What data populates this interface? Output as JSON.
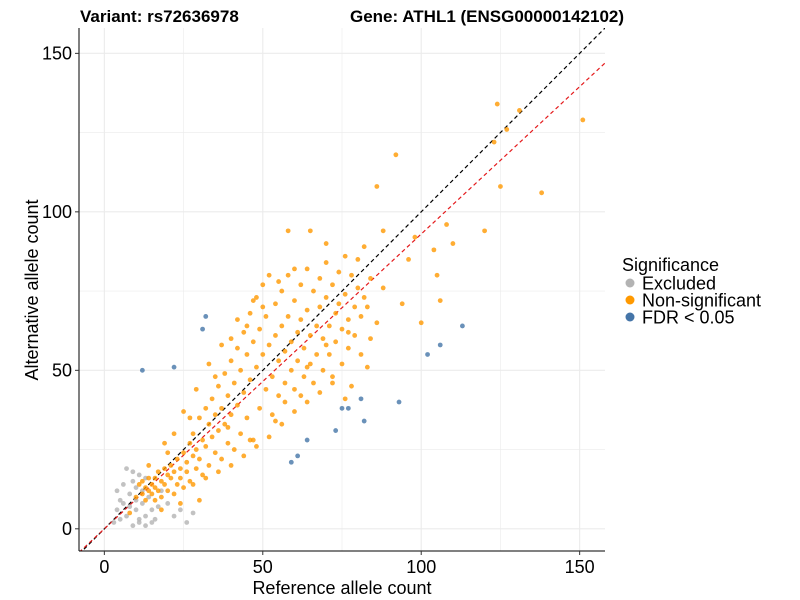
{
  "titles": {
    "variant": "Variant: rs72636978",
    "gene": "Gene: ATHL1 (ENSG00000142102)"
  },
  "chart_data": {
    "type": "scatter",
    "xlabel": "Reference allele count",
    "ylabel": "Alternative allele count",
    "xlim": [
      -8,
      158
    ],
    "ylim": [
      -7,
      158
    ],
    "x_ticks": [
      0,
      50,
      100,
      150
    ],
    "y_ticks": [
      0,
      50,
      100,
      150
    ],
    "grid": true,
    "legend": {
      "title": "Significance",
      "placement": "right",
      "entries": [
        {
          "label": "Excluded",
          "color": "#b3b3b3"
        },
        {
          "label": "Non-significant",
          "color": "#ff9900"
        },
        {
          "label": "FDR < 0.05",
          "color": "#4575a8"
        }
      ]
    },
    "reference_lines": [
      {
        "style": "dashed",
        "color": "#000000",
        "slope": 1.0,
        "intercept": 0
      },
      {
        "style": "dashed",
        "color": "#e41a1c",
        "slope": 0.93,
        "intercept": 0
      }
    ],
    "series": [
      {
        "name": "Excluded",
        "color": "#b3b3b3",
        "points": [
          [
            3,
            2
          ],
          [
            4,
            6
          ],
          [
            5,
            3
          ],
          [
            5,
            9
          ],
          [
            6,
            14
          ],
          [
            7,
            19
          ],
          [
            7,
            4
          ],
          [
            8,
            11
          ],
          [
            8,
            7
          ],
          [
            9,
            18
          ],
          [
            9,
            1
          ],
          [
            9,
            15
          ],
          [
            10,
            6
          ],
          [
            10,
            13
          ],
          [
            10,
            9
          ],
          [
            11,
            17
          ],
          [
            11,
            3
          ],
          [
            12,
            8
          ],
          [
            12,
            12
          ],
          [
            13,
            1
          ],
          [
            13,
            4
          ],
          [
            13,
            16
          ],
          [
            14,
            10
          ],
          [
            15,
            6
          ],
          [
            16,
            3
          ],
          [
            17,
            7
          ],
          [
            18,
            12
          ],
          [
            20,
            8
          ],
          [
            22,
            4
          ],
          [
            24,
            6
          ],
          [
            26,
            2
          ],
          [
            28,
            5
          ],
          [
            4,
            12
          ],
          [
            6,
            8
          ],
          [
            11,
            2
          ],
          [
            15,
            2
          ]
        ]
      },
      {
        "name": "Non-significant",
        "color": "#ff9900",
        "points": [
          [
            8,
            5
          ],
          [
            10,
            10
          ],
          [
            11,
            14
          ],
          [
            12,
            15
          ],
          [
            12,
            11
          ],
          [
            13,
            13
          ],
          [
            13,
            9
          ],
          [
            14,
            16
          ],
          [
            14,
            12
          ],
          [
            15,
            11
          ],
          [
            15,
            14
          ],
          [
            16,
            9
          ],
          [
            16,
            16
          ],
          [
            16,
            13
          ],
          [
            17,
            12
          ],
          [
            17,
            18
          ],
          [
            18,
            15
          ],
          [
            18,
            10
          ],
          [
            19,
            14
          ],
          [
            19,
            19
          ],
          [
            20,
            17
          ],
          [
            20,
            12
          ],
          [
            21,
            16
          ],
          [
            21,
            20
          ],
          [
            22,
            11
          ],
          [
            22,
            18
          ],
          [
            23,
            14
          ],
          [
            23,
            22
          ],
          [
            24,
            19
          ],
          [
            24,
            16
          ],
          [
            25,
            24
          ],
          [
            25,
            13
          ],
          [
            26,
            21
          ],
          [
            26,
            18
          ],
          [
            27,
            27
          ],
          [
            27,
            15
          ],
          [
            28,
            23
          ],
          [
            28,
            30
          ],
          [
            29,
            19
          ],
          [
            29,
            25
          ],
          [
            30,
            35
          ],
          [
            30,
            22
          ],
          [
            31,
            28
          ],
          [
            31,
            17
          ],
          [
            32,
            38
          ],
          [
            32,
            26
          ],
          [
            33,
            33
          ],
          [
            33,
            20
          ],
          [
            34,
            41
          ],
          [
            34,
            29
          ],
          [
            35,
            24
          ],
          [
            35,
            36
          ],
          [
            36,
            45
          ],
          [
            36,
            31
          ],
          [
            37,
            22
          ],
          [
            37,
            38
          ],
          [
            38,
            49
          ],
          [
            38,
            33
          ],
          [
            39,
            27
          ],
          [
            39,
            42
          ],
          [
            40,
            53
          ],
          [
            40,
            36
          ],
          [
            41,
            25
          ],
          [
            41,
            46
          ],
          [
            42,
            57
          ],
          [
            42,
            39
          ],
          [
            43,
            30
          ],
          [
            43,
            50
          ],
          [
            44,
            62
          ],
          [
            44,
            43
          ],
          [
            45,
            35
          ],
          [
            45,
            55
          ],
          [
            46,
            68
          ],
          [
            46,
            47
          ],
          [
            47,
            28
          ],
          [
            47,
            59
          ],
          [
            48,
            73
          ],
          [
            48,
            51
          ],
          [
            49,
            38
          ],
          [
            49,
            63
          ],
          [
            50,
            77
          ],
          [
            50,
            55
          ],
          [
            51,
            44
          ],
          [
            51,
            67
          ],
          [
            52,
            80
          ],
          [
            52,
            58
          ],
          [
            53,
            36
          ],
          [
            53,
            48
          ],
          [
            54,
            71
          ],
          [
            54,
            61
          ],
          [
            55,
            42
          ],
          [
            55,
            53
          ],
          [
            56,
            75
          ],
          [
            56,
            64
          ],
          [
            57,
            46
          ],
          [
            57,
            56
          ],
          [
            58,
            80
          ],
          [
            58,
            67
          ],
          [
            59,
            50
          ],
          [
            59,
            59
          ],
          [
            60,
            72
          ],
          [
            60,
            44
          ],
          [
            61,
            62
          ],
          [
            61,
            53
          ],
          [
            62,
            77
          ],
          [
            62,
            66
          ],
          [
            63,
            48
          ],
          [
            63,
            57
          ],
          [
            64,
            82
          ],
          [
            64,
            69
          ],
          [
            65,
            52
          ],
          [
            65,
            61
          ],
          [
            66,
            75
          ],
          [
            66,
            46
          ],
          [
            67,
            64
          ],
          [
            67,
            55
          ],
          [
            68,
            79
          ],
          [
            68,
            70
          ],
          [
            69,
            50
          ],
          [
            69,
            60
          ],
          [
            70,
            84
          ],
          [
            70,
            73
          ],
          [
            71,
            55
          ],
          [
            71,
            64
          ],
          [
            72,
            77
          ],
          [
            72,
            48
          ],
          [
            73,
            68
          ],
          [
            73,
            59
          ],
          [
            74,
            81
          ],
          [
            74,
            71
          ],
          [
            75,
            52
          ],
          [
            75,
            63
          ],
          [
            76,
            86
          ],
          [
            76,
            74
          ],
          [
            77,
            57
          ],
          [
            77,
            66
          ],
          [
            78,
            80
          ],
          [
            78,
            45
          ],
          [
            79,
            70
          ],
          [
            79,
            61
          ],
          [
            80,
            85
          ],
          [
            80,
            76
          ],
          [
            81,
            55
          ],
          [
            81,
            67
          ],
          [
            82,
            89
          ],
          [
            82,
            73
          ],
          [
            84,
            60
          ],
          [
            84,
            79
          ],
          [
            86,
            108
          ],
          [
            86,
            65
          ],
          [
            88,
            76
          ],
          [
            88,
            94
          ],
          [
            92,
            118
          ],
          [
            94,
            71
          ],
          [
            96,
            85
          ],
          [
            98,
            92
          ],
          [
            100,
            65
          ],
          [
            104,
            88
          ],
          [
            105,
            80
          ],
          [
            106,
            72
          ],
          [
            108,
            96
          ],
          [
            110,
            90
          ],
          [
            120,
            94
          ],
          [
            123,
            122
          ],
          [
            124,
            134
          ],
          [
            127,
            126
          ],
          [
            131,
            132
          ],
          [
            138,
            106
          ],
          [
            151,
            129
          ],
          [
            125,
            108
          ],
          [
            24,
            8
          ],
          [
            28,
            14
          ],
          [
            32,
            16
          ],
          [
            36,
            18
          ],
          [
            40,
            20
          ],
          [
            44,
            23
          ],
          [
            48,
            26
          ],
          [
            52,
            29
          ],
          [
            56,
            33
          ],
          [
            60,
            37
          ],
          [
            64,
            40
          ],
          [
            68,
            43
          ],
          [
            72,
            46
          ],
          [
            76,
            41
          ],
          [
            83,
            51
          ],
          [
            30,
            9
          ],
          [
            18,
            6
          ],
          [
            20,
            24
          ],
          [
            14,
            20
          ],
          [
            27,
            35
          ],
          [
            35,
            48
          ],
          [
            40,
            60
          ],
          [
            45,
            64
          ],
          [
            50,
            70
          ],
          [
            55,
            78
          ],
          [
            60,
            82
          ],
          [
            65,
            94
          ],
          [
            70,
            90
          ],
          [
            58,
            94
          ],
          [
            47,
            72
          ],
          [
            42,
            66
          ],
          [
            37,
            58
          ],
          [
            33,
            52
          ],
          [
            29,
            44
          ],
          [
            25,
            37
          ],
          [
            22,
            30
          ],
          [
            19,
            27
          ],
          [
            62,
            42
          ],
          [
            54,
            34
          ],
          [
            46,
            28
          ],
          [
            39,
            32
          ],
          [
            57,
            40
          ],
          [
            64,
            51
          ],
          [
            70,
            58
          ],
          [
            77,
            62
          ],
          [
            83,
            70
          ]
        ]
      },
      {
        "name": "FDR < 0.05",
        "color": "#4575a8",
        "points": [
          [
            12,
            50
          ],
          [
            22,
            51
          ],
          [
            31,
            63
          ],
          [
            32,
            67
          ],
          [
            59,
            21
          ],
          [
            61,
            23
          ],
          [
            64,
            28
          ],
          [
            73,
            31
          ],
          [
            75,
            38
          ],
          [
            77,
            38
          ],
          [
            81,
            41
          ],
          [
            82,
            34
          ],
          [
            93,
            40
          ],
          [
            102,
            55
          ],
          [
            106,
            58
          ],
          [
            113,
            64
          ]
        ]
      }
    ]
  }
}
